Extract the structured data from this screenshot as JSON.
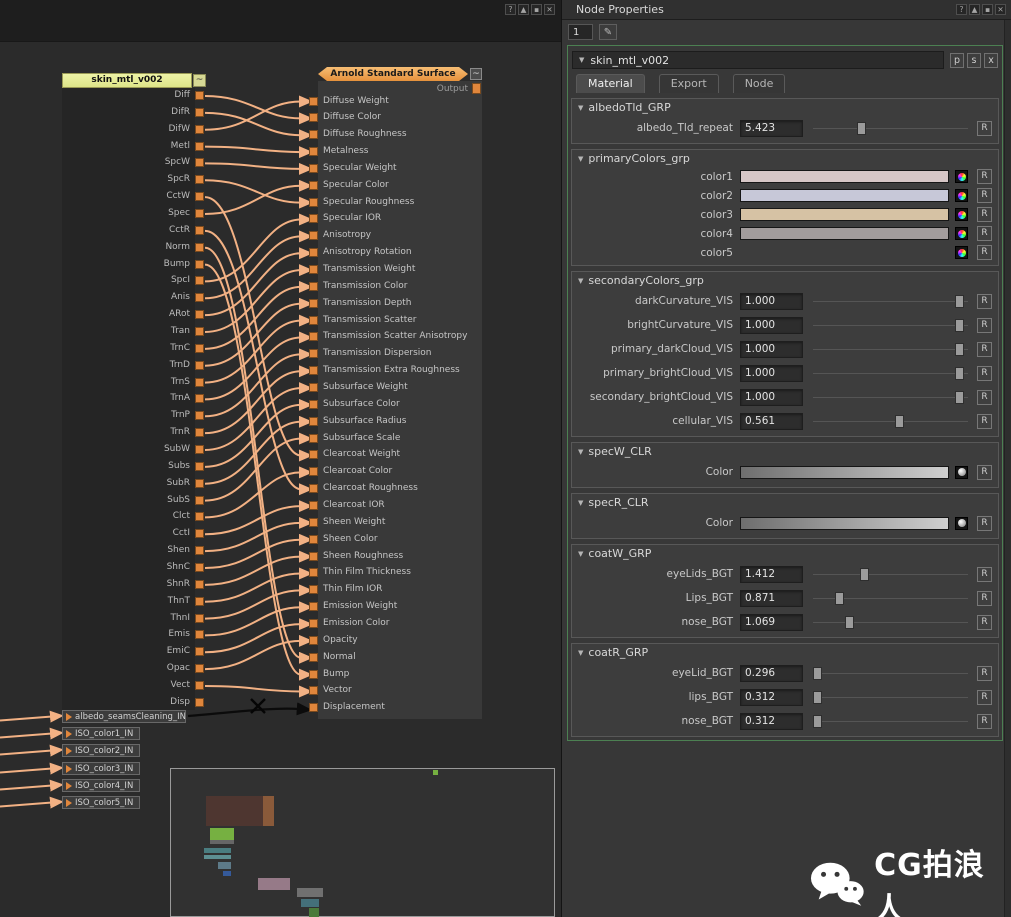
{
  "window": {
    "titlebar_icons": [
      {
        "name": "help-icon",
        "glyph": "?"
      },
      {
        "name": "maximize-icon",
        "glyph": "▲"
      },
      {
        "name": "pin-icon",
        "glyph": "▪"
      },
      {
        "name": "close-icon",
        "glyph": "✕"
      }
    ]
  },
  "editor": {
    "source_node": {
      "title": "skin_mtl_v002",
      "menu_label": "~",
      "ports": [
        "Diff",
        "DifR",
        "DifW",
        "Metl",
        "SpcW",
        "SpcR",
        "CctW",
        "Spec",
        "CctR",
        "Norm",
        "Bump",
        "SpcI",
        "Anis",
        "ARot",
        "Tran",
        "TrnC",
        "TrnD",
        "TrnS",
        "TrnA",
        "TrnP",
        "TrnR",
        "SubW",
        "Subs",
        "SubR",
        "SubS",
        "Clct",
        "CctI",
        "Shen",
        "ShnC",
        "ShnR",
        "ThnT",
        "ThnI",
        "Emis",
        "EmiC",
        "Opac",
        "Vect",
        "Disp"
      ]
    },
    "target_node": {
      "title": "Arnold Standard Surface",
      "menu_label": "~",
      "output_label": "Output",
      "ports": [
        "Diffuse Weight",
        "Diffuse Color",
        "Diffuse Roughness",
        "Metalness",
        "Specular Weight",
        "Specular Color",
        "Specular Roughness",
        "Specular IOR",
        "Anisotropy",
        "Anisotropy Rotation",
        "Transmission Weight",
        "Transmission Color",
        "Transmission Depth",
        "Transmission Scatter",
        "Transmission Scatter Anisotropy",
        "Transmission Dispersion",
        "Transmission Extra Roughness",
        "Subsurface Weight",
        "Subsurface Color",
        "Subsurface Radius",
        "Subsurface Scale",
        "Clearcoat Weight",
        "Clearcoat Color",
        "Clearcoat Roughness",
        "Clearcoat IOR",
        "Sheen Weight",
        "Sheen Color",
        "Sheen Roughness",
        "Thin Film Thickness",
        "Thin Film IOR",
        "Emission Weight",
        "Emission Color",
        "Opacity",
        "Normal",
        "Bump",
        "Vector",
        "Displacement"
      ]
    },
    "connections": [
      [
        0,
        1
      ],
      [
        1,
        2
      ],
      [
        2,
        0
      ],
      [
        3,
        3
      ],
      [
        4,
        4
      ],
      [
        5,
        6
      ],
      [
        6,
        21
      ],
      [
        7,
        5
      ],
      [
        8,
        23
      ],
      [
        9,
        33
      ],
      [
        10,
        34
      ],
      [
        11,
        7
      ],
      [
        12,
        8
      ],
      [
        13,
        9
      ],
      [
        14,
        10
      ],
      [
        15,
        11
      ],
      [
        16,
        12
      ],
      [
        17,
        13
      ],
      [
        18,
        14
      ],
      [
        19,
        15
      ],
      [
        20,
        16
      ],
      [
        21,
        17
      ],
      [
        22,
        18
      ],
      [
        23,
        19
      ],
      [
        24,
        20
      ],
      [
        25,
        22
      ],
      [
        26,
        24
      ],
      [
        27,
        25
      ],
      [
        28,
        26
      ],
      [
        29,
        27
      ],
      [
        30,
        28
      ],
      [
        31,
        29
      ],
      [
        32,
        30
      ],
      [
        33,
        31
      ],
      [
        34,
        32
      ],
      [
        35,
        35
      ]
    ],
    "input_nodes": [
      "albedo_seamsCleaning_IN",
      "ISO_color1_IN",
      "ISO_color2_IN",
      "ISO_color3_IN",
      "ISO_color4_IN",
      "ISO_color5_IN"
    ],
    "disconnected_wire": {
      "from": "albedo_seamsCleaning_IN",
      "to": "Displacement"
    }
  },
  "properties": {
    "title": "Node Properties",
    "index_value": "1",
    "filter_icon": "✎",
    "node_header": "skin_mtl_v002",
    "header_buttons": [
      "p",
      "s",
      "x"
    ],
    "reset_label": "R",
    "tabs": [
      {
        "label": "Material",
        "active": true
      },
      {
        "label": "Export",
        "active": false
      },
      {
        "label": "Node",
        "active": false
      }
    ],
    "groups": [
      {
        "name": "albedoTld_GRP",
        "rows": [
          {
            "type": "slider",
            "label": "albedo_Tld_repeat",
            "value": "5.423",
            "pos": 0.3
          }
        ]
      },
      {
        "name": "primaryColors_grp",
        "rows": [
          {
            "type": "color",
            "label": "color1",
            "color": "#d6c6c6"
          },
          {
            "type": "color",
            "label": "color2",
            "color": "#c7c8d8"
          },
          {
            "type": "color",
            "label": "color3",
            "color": "#d6c2a4"
          },
          {
            "type": "color",
            "label": "color4",
            "color": "#a29c9c"
          },
          {
            "type": "color",
            "label": "color5",
            "color": null
          }
        ]
      },
      {
        "name": "secondaryColors_grp",
        "rows": [
          {
            "type": "slider",
            "label": "darkCurvature_VIS",
            "value": "1.000",
            "pos": 0.97
          },
          {
            "type": "slider",
            "label": "brightCurvature_VIS",
            "value": "1.000",
            "pos": 0.97
          },
          {
            "type": "slider",
            "label": "primary_darkCloud_VIS",
            "value": "1.000",
            "pos": 0.97
          },
          {
            "type": "slider",
            "label": "primary_brightCloud_VIS",
            "value": "1.000",
            "pos": 0.97
          },
          {
            "type": "slider",
            "label": "secondary_brightCloud_VIS",
            "value": "1.000",
            "pos": 0.97
          },
          {
            "type": "slider",
            "label": "cellular_VIS",
            "value": "0.561",
            "pos": 0.56
          }
        ]
      },
      {
        "name": "specW_CLR",
        "rows": [
          {
            "type": "ramp",
            "label": "Color"
          }
        ]
      },
      {
        "name": "specR_CLR",
        "rows": [
          {
            "type": "ramp",
            "label": "Color"
          }
        ]
      },
      {
        "name": "coatW_GRP",
        "rows": [
          {
            "type": "slider",
            "label": "eyeLids_BGT",
            "value": "1.412",
            "pos": 0.32
          },
          {
            "type": "slider",
            "label": "Lips_BGT",
            "value": "0.871",
            "pos": 0.15
          },
          {
            "type": "slider",
            "label": "nose_BGT",
            "value": "1.069",
            "pos": 0.22
          }
        ]
      },
      {
        "name": "coatR_GRP",
        "rows": [
          {
            "type": "slider",
            "label": "eyeLid_BGT",
            "value": "0.296",
            "pos": 0.0
          },
          {
            "type": "slider",
            "label": "lips_BGT",
            "value": "0.312",
            "pos": 0.0
          },
          {
            "type": "slider",
            "label": "nose_BGT",
            "value": "0.312",
            "pos": 0.0
          }
        ]
      }
    ]
  },
  "watermark": {
    "text": "CG拍浪人"
  }
}
